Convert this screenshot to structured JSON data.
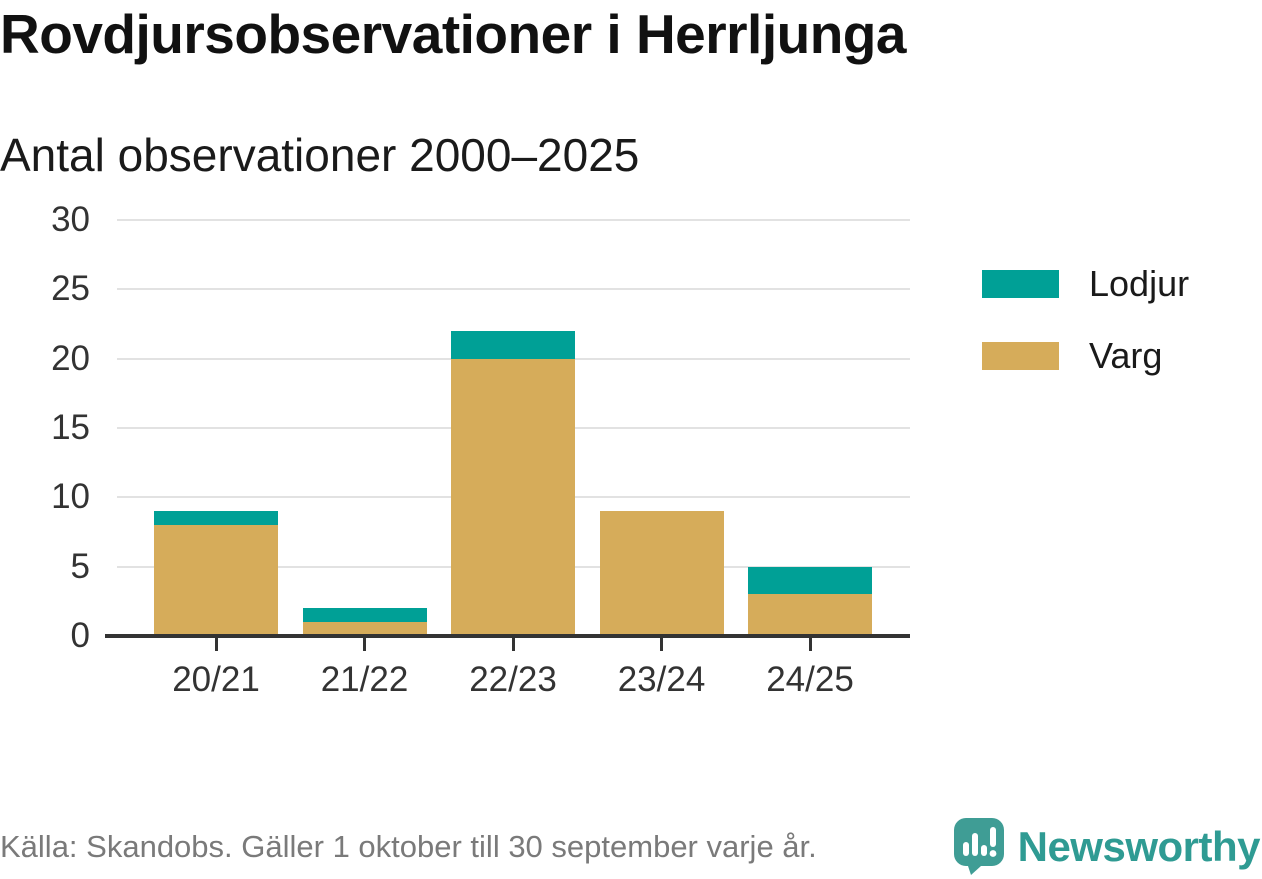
{
  "chart_data": {
    "type": "bar",
    "stacked": true,
    "title": "Rovdjursobservationer i Herrljunga",
    "subtitle": "Antal observationer 2000–2025",
    "categories": [
      "20/21",
      "21/22",
      "22/23",
      "23/24",
      "24/25"
    ],
    "series": [
      {
        "name": "Lodjur",
        "color": "#00A096",
        "values": [
          1,
          1,
          2,
          0,
          2
        ]
      },
      {
        "name": "Varg",
        "color": "#D6AC5A",
        "values": [
          8,
          1,
          20,
          9,
          3
        ]
      }
    ],
    "stack_order_bottom_to_top": [
      "Varg",
      "Lodjur"
    ],
    "totals": [
      9,
      2,
      22,
      9,
      5
    ],
    "ylim": [
      0,
      30
    ],
    "yticks": [
      0,
      5,
      10,
      15,
      20,
      25,
      30
    ],
    "grid": true,
    "legend_position": "right"
  },
  "footer": {
    "source": "Källa: Skandobs. Gäller 1 oktober till 30 september varje år.",
    "brand": "Newsworthy"
  },
  "colors": {
    "lodjur": "#00A096",
    "varg": "#D6AC5A",
    "grid": "#E2E2E2",
    "axis": "#333333",
    "text": "#1A1A1A",
    "muted": "#7A7A7A",
    "brand": "#2F9B93",
    "logo_bubble": "#3F9D95"
  }
}
